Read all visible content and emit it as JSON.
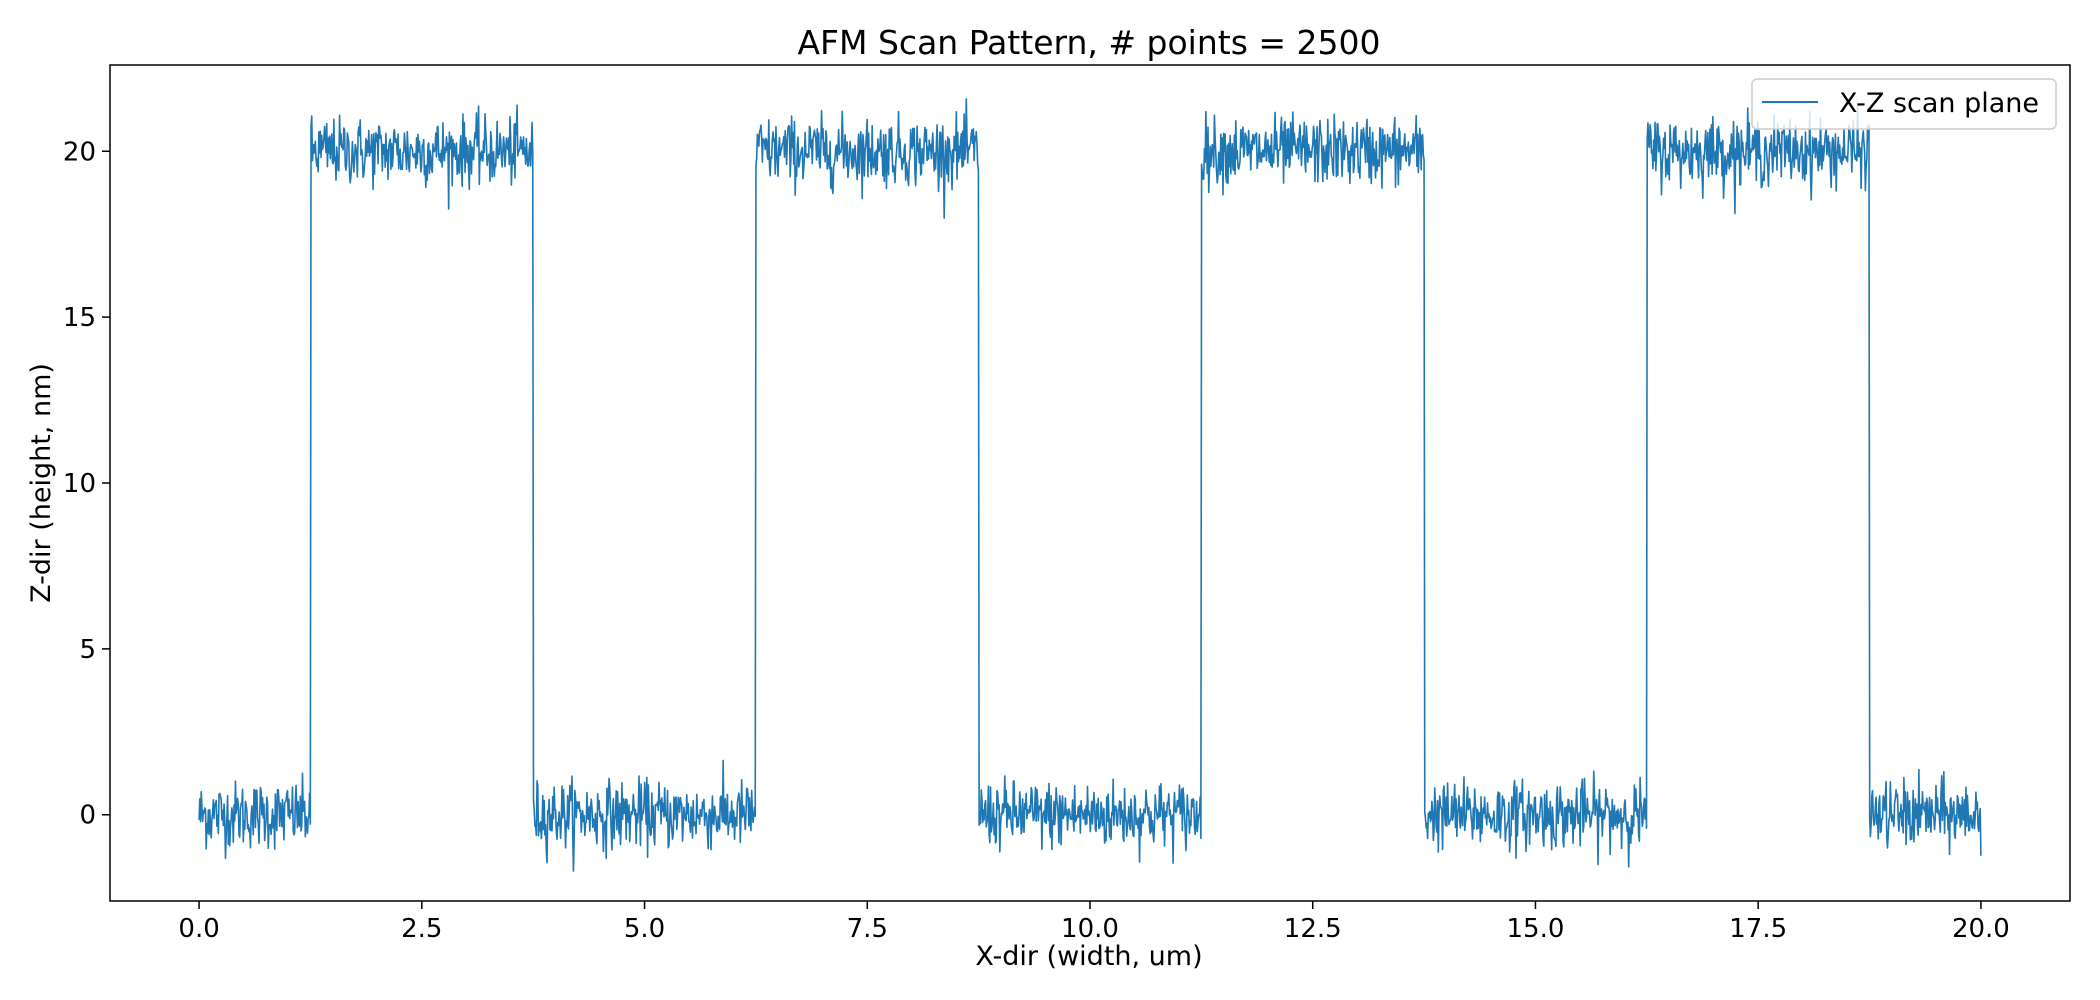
{
  "chart_data": {
    "type": "line",
    "title": "AFM Scan Pattern, # points = 2500",
    "xlabel": "X-dir (width, um)",
    "ylabel": "Z-dir (height, nm)",
    "xlim": [
      -1.0,
      21.0
    ],
    "ylim": [
      -2.6,
      22.6
    ],
    "x_ticks": [
      0.0,
      2.5,
      5.0,
      7.5,
      10.0,
      12.5,
      15.0,
      17.5,
      20.0
    ],
    "x_tick_labels": [
      "0.0",
      "2.5",
      "5.0",
      "7.5",
      "10.0",
      "12.5",
      "15.0",
      "17.5",
      "20.0"
    ],
    "y_ticks": [
      0,
      5,
      10,
      15,
      20
    ],
    "y_tick_labels": [
      "0",
      "5",
      "10",
      "15",
      "20"
    ],
    "grid": false,
    "legend_position": "upper right",
    "series": [
      {
        "name": "X-Z scan plane",
        "color": "#1f77b4",
        "x_range": [
          0.0,
          20.0
        ],
        "num_points": 2500,
        "low_level": 0,
        "high_level": 20,
        "noise_std": 0.5,
        "segments": [
          {
            "x_start": 0.0,
            "x_end": 1.25,
            "level": 0
          },
          {
            "x_start": 1.25,
            "x_end": 3.75,
            "level": 20
          },
          {
            "x_start": 3.75,
            "x_end": 6.25,
            "level": 0
          },
          {
            "x_start": 6.25,
            "x_end": 8.75,
            "level": 20
          },
          {
            "x_start": 8.75,
            "x_end": 11.25,
            "level": 0
          },
          {
            "x_start": 11.25,
            "x_end": 13.75,
            "level": 20
          },
          {
            "x_start": 13.75,
            "x_end": 16.25,
            "level": 0
          },
          {
            "x_start": 16.25,
            "x_end": 18.75,
            "level": 20
          },
          {
            "x_start": 18.75,
            "x_end": 20.0,
            "level": 0
          }
        ]
      }
    ]
  }
}
